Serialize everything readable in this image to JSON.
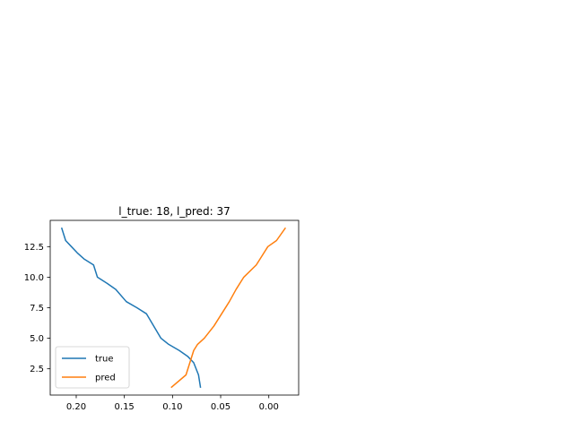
{
  "chart_data": {
    "type": "line",
    "title": "l_true: 18, l_pred: 37",
    "xlabel": "",
    "ylabel": "",
    "x_inverted": true,
    "xlim": [
      0.227,
      -0.031
    ],
    "ylim": [
      0.35,
      14.65
    ],
    "xticks": [
      0.2,
      0.15,
      0.1,
      0.05,
      0.0
    ],
    "xtick_labels": [
      "0.20",
      "0.15",
      "0.10",
      "0.05",
      "0.00"
    ],
    "yticks": [
      2.5,
      5.0,
      7.5,
      10.0,
      12.5
    ],
    "ytick_labels": [
      "2.5",
      "5.0",
      "7.5",
      "10.0",
      "12.5"
    ],
    "grid": false,
    "legend_position": "lower-left",
    "series": [
      {
        "name": "true",
        "color": "#1f77b4",
        "x": [
          0.071,
          0.073,
          0.078,
          0.084,
          0.093,
          0.104,
          0.112,
          0.127,
          0.137,
          0.148,
          0.159,
          0.168,
          0.178,
          0.182,
          0.192,
          0.199,
          0.205,
          0.211,
          0.215
        ],
        "y": [
          1,
          2,
          3,
          3.5,
          4,
          4.5,
          5,
          7,
          7.5,
          8,
          9,
          9.5,
          10,
          11,
          11.5,
          12,
          12.5,
          13,
          14
        ]
      },
      {
        "name": "pred",
        "color": "#ff7f0e",
        "x": [
          0.101,
          0.086,
          0.082,
          0.078,
          0.074,
          0.067,
          0.057,
          0.049,
          0.041,
          0.034,
          0.026,
          0.013,
          0.005,
          0.001,
          -0.008,
          -0.017
        ],
        "y": [
          1,
          2,
          3,
          4,
          4.5,
          5,
          6,
          7,
          8,
          9,
          10,
          11,
          12,
          12.5,
          13,
          14
        ]
      }
    ]
  }
}
